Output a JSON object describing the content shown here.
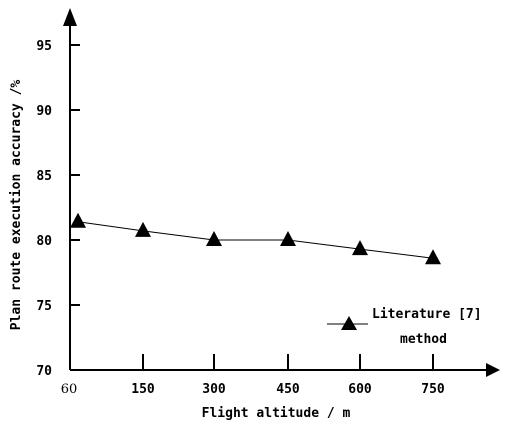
{
  "chart_data": {
    "type": "line",
    "x_categories": [
      "60",
      "150",
      "300",
      "450",
      "600",
      "750"
    ],
    "y_ticks": [
      "70",
      "75",
      "80",
      "85",
      "90",
      "95"
    ],
    "ylim": [
      70,
      97
    ],
    "series": [
      {
        "name": "Literature [7] method",
        "marker": "triangle",
        "color": "#000000",
        "values": [
          81.4,
          80.7,
          80.0,
          80.0,
          79.3,
          78.6
        ]
      }
    ],
    "xlabel": "Flight altitude / m",
    "ylabel": "Plan route execution accuracy /%",
    "legend": {
      "position": "bottom-right",
      "line1": "Literature [7]",
      "line2": "method"
    },
    "grid": false
  }
}
